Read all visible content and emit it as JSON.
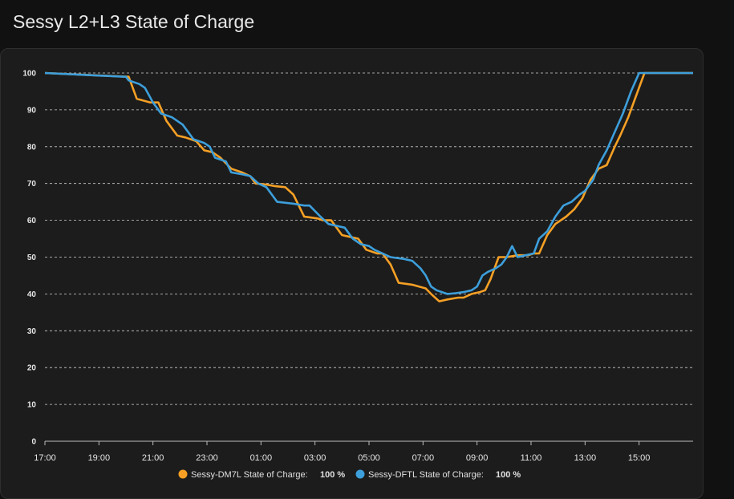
{
  "page": {
    "title": "Sessy L2+L3 State of Charge"
  },
  "colors": {
    "background": "#111111",
    "card": "#1c1c1c",
    "grid": "#d0d0d0",
    "series_orange": "#f5a025",
    "series_blue": "#3d9fdb"
  },
  "legend": {
    "items": [
      {
        "label": "Sessy-DM7L State of Charge:",
        "value": "100 %",
        "color": "#f5a025"
      },
      {
        "label": "Sessy-DFTL State of Charge:",
        "value": "100 %",
        "color": "#3d9fdb"
      }
    ]
  },
  "chart_data": {
    "type": "line",
    "title": "",
    "xlabel": "",
    "ylabel": "",
    "x_ticks": [
      "17:00",
      "19:00",
      "21:00",
      "23:00",
      "01:00",
      "03:00",
      "05:00",
      "07:00",
      "09:00",
      "11:00",
      "13:00",
      "15:00"
    ],
    "y_ticks": [
      0,
      10,
      20,
      30,
      40,
      50,
      60,
      70,
      80,
      90,
      100
    ],
    "xlim": [
      0,
      24
    ],
    "ylim": [
      0,
      100
    ],
    "x_unit": "hours since 17:00",
    "grid": true,
    "legend_position": "bottom",
    "series": [
      {
        "name": "Sessy-DM7L State of Charge",
        "color": "#f5a025",
        "points": [
          [
            0,
            100
          ],
          [
            3.0,
            99
          ],
          [
            3.1,
            99
          ],
          [
            3.4,
            93
          ],
          [
            3.9,
            92
          ],
          [
            4.2,
            92
          ],
          [
            4.5,
            87
          ],
          [
            4.9,
            83
          ],
          [
            5.2,
            82.5
          ],
          [
            5.6,
            81.5
          ],
          [
            5.9,
            79
          ],
          [
            6.2,
            78.5
          ],
          [
            6.5,
            77
          ],
          [
            6.9,
            74
          ],
          [
            7.3,
            73
          ],
          [
            7.6,
            72
          ],
          [
            7.8,
            70
          ],
          [
            8.2,
            69.7
          ],
          [
            8.5,
            69.3
          ],
          [
            8.9,
            69
          ],
          [
            9.2,
            67
          ],
          [
            9.6,
            61
          ],
          [
            10.1,
            60.5
          ],
          [
            10.3,
            60
          ],
          [
            10.6,
            60
          ],
          [
            10.8,
            58
          ],
          [
            11.0,
            56
          ],
          [
            11.3,
            55.5
          ],
          [
            11.6,
            55
          ],
          [
            11.9,
            52
          ],
          [
            12.3,
            51
          ],
          [
            12.5,
            51
          ],
          [
            12.8,
            48
          ],
          [
            13.1,
            43
          ],
          [
            13.6,
            42.5
          ],
          [
            14.1,
            41.5
          ],
          [
            14.3,
            40
          ],
          [
            14.6,
            38
          ],
          [
            14.9,
            38.5
          ],
          [
            15.3,
            39
          ],
          [
            15.5,
            39
          ],
          [
            15.8,
            40
          ],
          [
            16.1,
            40.5
          ],
          [
            16.3,
            41
          ],
          [
            16.5,
            44
          ],
          [
            16.8,
            50
          ],
          [
            17.1,
            50
          ],
          [
            17.5,
            50.5
          ],
          [
            17.9,
            50.5
          ],
          [
            18.1,
            51
          ],
          [
            18.3,
            51
          ],
          [
            18.6,
            56
          ],
          [
            18.9,
            59
          ],
          [
            19.3,
            61
          ],
          [
            19.6,
            63
          ],
          [
            19.9,
            66
          ],
          [
            20.2,
            71
          ],
          [
            20.5,
            74
          ],
          [
            20.8,
            75
          ],
          [
            21.1,
            80
          ],
          [
            21.3,
            83
          ],
          [
            21.6,
            88
          ],
          [
            21.9,
            94
          ],
          [
            22.2,
            100
          ],
          [
            24,
            100
          ]
        ]
      },
      {
        "name": "Sessy-DFTL State of Charge",
        "color": "#3d9fdb",
        "points": [
          [
            0,
            100
          ],
          [
            2.9,
            99
          ],
          [
            3.0,
            99
          ],
          [
            3.1,
            98
          ],
          [
            3.5,
            97
          ],
          [
            3.7,
            96
          ],
          [
            4.0,
            92
          ],
          [
            4.3,
            89
          ],
          [
            4.7,
            88
          ],
          [
            5.1,
            86
          ],
          [
            5.5,
            82
          ],
          [
            5.9,
            81
          ],
          [
            6.1,
            80
          ],
          [
            6.3,
            77
          ],
          [
            6.7,
            76
          ],
          [
            6.9,
            73
          ],
          [
            7.3,
            72.5
          ],
          [
            7.6,
            72
          ],
          [
            7.9,
            70
          ],
          [
            8.2,
            69
          ],
          [
            8.6,
            65
          ],
          [
            9.2,
            64.5
          ],
          [
            9.6,
            64
          ],
          [
            9.8,
            64
          ],
          [
            10.2,
            61
          ],
          [
            10.5,
            59
          ],
          [
            10.8,
            58.5
          ],
          [
            11.1,
            58
          ],
          [
            11.4,
            55
          ],
          [
            11.7,
            53.5
          ],
          [
            12.0,
            53
          ],
          [
            12.2,
            52
          ],
          [
            12.8,
            50
          ],
          [
            13.3,
            49.5
          ],
          [
            13.6,
            49
          ],
          [
            13.9,
            47
          ],
          [
            14.1,
            45
          ],
          [
            14.3,
            42
          ],
          [
            14.5,
            41
          ],
          [
            14.9,
            40
          ],
          [
            15.2,
            40.2
          ],
          [
            15.5,
            40.5
          ],
          [
            15.8,
            41
          ],
          [
            16.0,
            42
          ],
          [
            16.2,
            45
          ],
          [
            16.4,
            46
          ],
          [
            16.7,
            47
          ],
          [
            16.9,
            48
          ],
          [
            17.1,
            50
          ],
          [
            17.3,
            53
          ],
          [
            17.5,
            50
          ],
          [
            17.8,
            50.5
          ],
          [
            18.1,
            51
          ],
          [
            18.3,
            55
          ],
          [
            18.6,
            57
          ],
          [
            18.9,
            61
          ],
          [
            19.2,
            64
          ],
          [
            19.5,
            65
          ],
          [
            19.8,
            67
          ],
          [
            20.0,
            68
          ],
          [
            20.3,
            71
          ],
          [
            20.5,
            75
          ],
          [
            20.8,
            79
          ],
          [
            21.1,
            84
          ],
          [
            21.4,
            89
          ],
          [
            21.7,
            95
          ],
          [
            22.0,
            100
          ],
          [
            24,
            100
          ]
        ]
      }
    ]
  }
}
